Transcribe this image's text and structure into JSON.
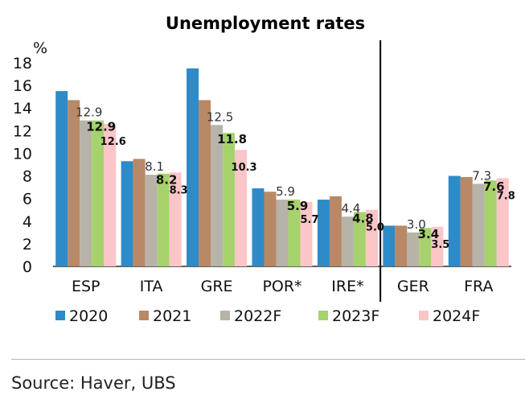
{
  "chart_data": {
    "type": "bar",
    "title": "Unemployment rates",
    "ylabel": "%",
    "xlabel": "",
    "ylim": [
      0,
      18
    ],
    "yticks": [
      0,
      2,
      4,
      6,
      8,
      10,
      12,
      14,
      16,
      18
    ],
    "categories": [
      "ESP",
      "ITA",
      "GRE",
      "POR*",
      "IRE*",
      "GER",
      "FRA"
    ],
    "series": [
      {
        "name": "2020",
        "color": "#2e8bc8",
        "values": [
          15.5,
          9.3,
          17.5,
          6.9,
          5.9,
          3.6,
          8.0
        ]
      },
      {
        "name": "2021",
        "color": "#b98866",
        "values": [
          14.7,
          9.5,
          14.7,
          6.6,
          6.2,
          3.6,
          7.9
        ]
      },
      {
        "name": "2022F",
        "color": "#b7b3a9",
        "values": [
          12.9,
          8.1,
          12.5,
          5.9,
          4.4,
          3.0,
          7.3
        ]
      },
      {
        "name": "2023F",
        "color": "#a6d26c",
        "values": [
          12.9,
          8.2,
          11.8,
          5.9,
          4.8,
          3.4,
          7.6
        ]
      },
      {
        "name": "2024F",
        "color": "#fcc5c8",
        "values": [
          12.6,
          8.3,
          10.3,
          5.7,
          5.0,
          3.5,
          7.8
        ]
      }
    ],
    "data_labels": {
      "2022F": [
        "12.9",
        "8.1",
        "12.5",
        "5.9",
        "4.4",
        "3.0",
        "7.3"
      ],
      "2023F": [
        "12.9",
        "8.2",
        "11.8",
        "5.9",
        "4.8",
        "3.4",
        "7.6"
      ],
      "2024F": [
        "12.6",
        "8.3",
        "10.3",
        "5.7",
        "5.0",
        "3.5",
        "7.8"
      ]
    },
    "divider_after_category": "IRE*",
    "legend_position": "bottom"
  },
  "source": "Source: Haver, UBS"
}
